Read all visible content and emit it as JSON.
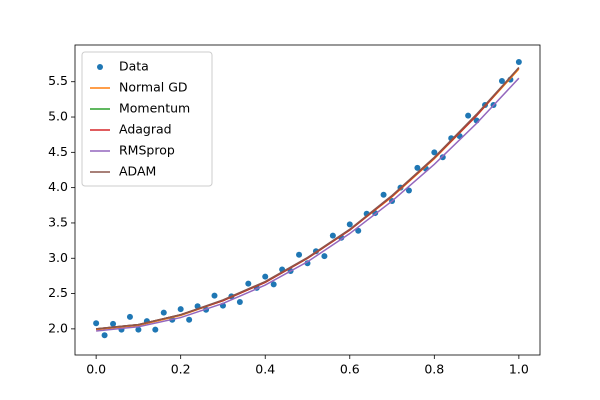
{
  "chart_data": {
    "type": "line",
    "scatter": {
      "name": "Data",
      "color": "#1f77b4",
      "x": [
        0,
        0.02,
        0.04,
        0.06,
        0.08,
        0.1,
        0.12,
        0.14,
        0.16,
        0.18,
        0.2,
        0.22,
        0.24,
        0.26,
        0.28,
        0.3,
        0.32,
        0.34,
        0.36,
        0.38,
        0.4,
        0.42,
        0.44,
        0.46,
        0.48,
        0.5,
        0.52,
        0.54,
        0.56,
        0.58,
        0.6,
        0.62,
        0.64,
        0.66,
        0.68,
        0.7,
        0.72,
        0.74,
        0.76,
        0.78,
        0.8,
        0.82,
        0.84,
        0.86,
        0.88,
        0.9,
        0.92,
        0.94,
        0.96,
        0.98,
        1.0
      ],
      "y": [
        2.08,
        1.91,
        2.07,
        1.99,
        2.17,
        1.99,
        2.11,
        1.99,
        2.23,
        2.13,
        2.28,
        2.13,
        2.32,
        2.27,
        2.47,
        2.33,
        2.46,
        2.38,
        2.64,
        2.58,
        2.74,
        2.63,
        2.84,
        2.82,
        3.05,
        2.93,
        3.1,
        3.03,
        3.32,
        3.29,
        3.48,
        3.39,
        3.63,
        3.64,
        3.9,
        3.81,
        4.0,
        3.96,
        4.28,
        4.27,
        4.5,
        4.43,
        4.7,
        4.73,
        5.02,
        4.95,
        5.17,
        5.17,
        5.51,
        5.53,
        5.78
      ]
    },
    "x": [
      0,
      0.1,
      0.2,
      0.3,
      0.4,
      0.5,
      0.6,
      0.7,
      0.8,
      0.9,
      1.0
    ],
    "series": [
      {
        "name": "Normal GD",
        "color": "#ff7f0e",
        "values": [
          1.99,
          2.05,
          2.19,
          2.4,
          2.66,
          3.0,
          3.4,
          3.87,
          4.41,
          5.02,
          5.68
        ]
      },
      {
        "name": "Momentum",
        "color": "#2ca02c",
        "values": [
          2.0,
          2.06,
          2.2,
          2.4,
          2.66,
          3.0,
          3.4,
          3.88,
          4.42,
          5.02,
          5.7
        ]
      },
      {
        "name": "Adagrad",
        "color": "#d62728",
        "values": [
          2.0,
          2.06,
          2.2,
          2.4,
          2.66,
          3.0,
          3.4,
          3.88,
          4.42,
          5.02,
          5.7
        ]
      },
      {
        "name": "RMSprop",
        "color": "#9467bd",
        "values": [
          1.97,
          2.03,
          2.16,
          2.36,
          2.62,
          2.95,
          3.35,
          3.81,
          4.33,
          4.91,
          5.55
        ]
      },
      {
        "name": "ADAM",
        "color": "#8c564b",
        "values": [
          2.0,
          2.06,
          2.2,
          2.41,
          2.67,
          3.01,
          3.41,
          3.89,
          4.43,
          5.04,
          5.7
        ]
      }
    ],
    "xlim": [
      -0.05,
      1.05
    ],
    "ylim": [
      1.63,
      6.02
    ],
    "xticks": [
      {
        "value": 0,
        "label": "0.0"
      },
      {
        "value": 0.2,
        "label": "0.2"
      },
      {
        "value": 0.4,
        "label": "0.4"
      },
      {
        "value": 0.6,
        "label": "0.6"
      },
      {
        "value": 0.8,
        "label": "0.8"
      },
      {
        "value": 1,
        "label": "1.0"
      }
    ],
    "yticks": [
      {
        "value": 2,
        "label": "2.0"
      },
      {
        "value": 2.5,
        "label": "2.5"
      },
      {
        "value": 3,
        "label": "3.0"
      },
      {
        "value": 3.5,
        "label": "3.5"
      },
      {
        "value": 4,
        "label": "4.0"
      },
      {
        "value": 4.5,
        "label": "4.5"
      },
      {
        "value": 5,
        "label": "5.0"
      },
      {
        "value": 5.5,
        "label": "5.5"
      }
    ],
    "legend": "upper left",
    "grid": false
  }
}
